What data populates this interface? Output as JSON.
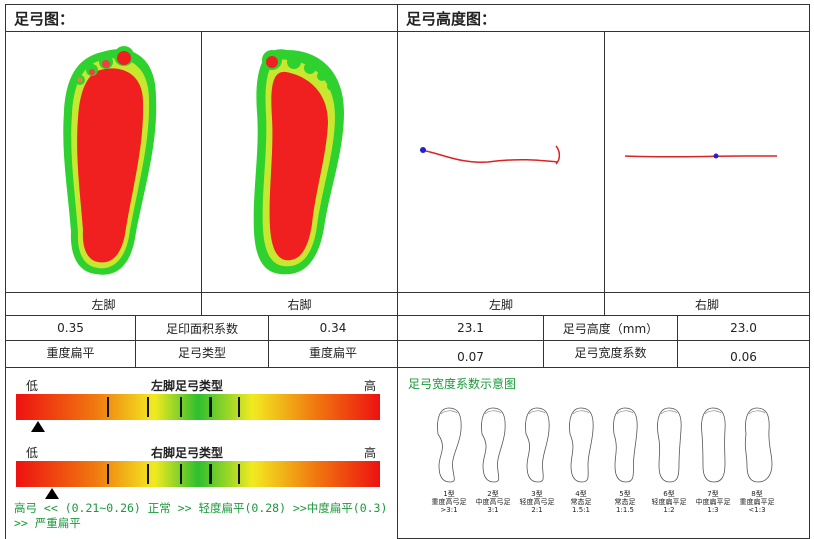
{
  "left_section": {
    "title": "足弓图：",
    "feet": [
      "左脚",
      "右脚"
    ],
    "row1": {
      "left_value": "0.35",
      "label": "足印面积系数",
      "right_value": "0.34"
    },
    "row2": {
      "left_value": "重度扁平",
      "label": "足弓类型",
      "right_value": "重度扁平"
    }
  },
  "right_section": {
    "title": "足弓高度图：",
    "feet": [
      "左脚",
      "右脚"
    ],
    "row1": {
      "left_value": "23.1",
      "label": "足弓高度（mm）",
      "right_value": "23.0"
    },
    "row2": {
      "left_value": "0.07",
      "label": "足弓宽度系数",
      "right_value": "0.06"
    }
  },
  "scales": {
    "low": "低",
    "high": "高",
    "left_title": "左脚足弓类型",
    "right_title": "右脚足弓类型",
    "left_marker_fraction": 0.06,
    "right_marker_fraction": 0.1,
    "legend": "高弓 << (0.21~0.26) 正常 >> 轻度扁平(0.28) >>中度扁平(0.3) >> 严重扁平",
    "colors": {
      "red": "#ee1111",
      "orange": "#f07a10",
      "yellow": "#f2ea20",
      "green": "#2fbf2f"
    }
  },
  "width_diagram": {
    "title": "足弓宽度系数示意图",
    "types": [
      {
        "name": "1型",
        "desc": "重度高弓足",
        "ratio": ">3:1"
      },
      {
        "name": "2型",
        "desc": "中度高弓足",
        "ratio": "3:1"
      },
      {
        "name": "3型",
        "desc": "轻度高弓足",
        "ratio": "2:1"
      },
      {
        "name": "4型",
        "desc": "常态足",
        "ratio": "1.5:1"
      },
      {
        "name": "5型",
        "desc": "常态足",
        "ratio": "1:1.5"
      },
      {
        "name": "6型",
        "desc": "轻度扁平足",
        "ratio": "1:2"
      },
      {
        "name": "7型",
        "desc": "中度扁平足",
        "ratio": "1:3"
      },
      {
        "name": "8型",
        "desc": "重度扁平足",
        "ratio": "<1:3"
      }
    ]
  }
}
